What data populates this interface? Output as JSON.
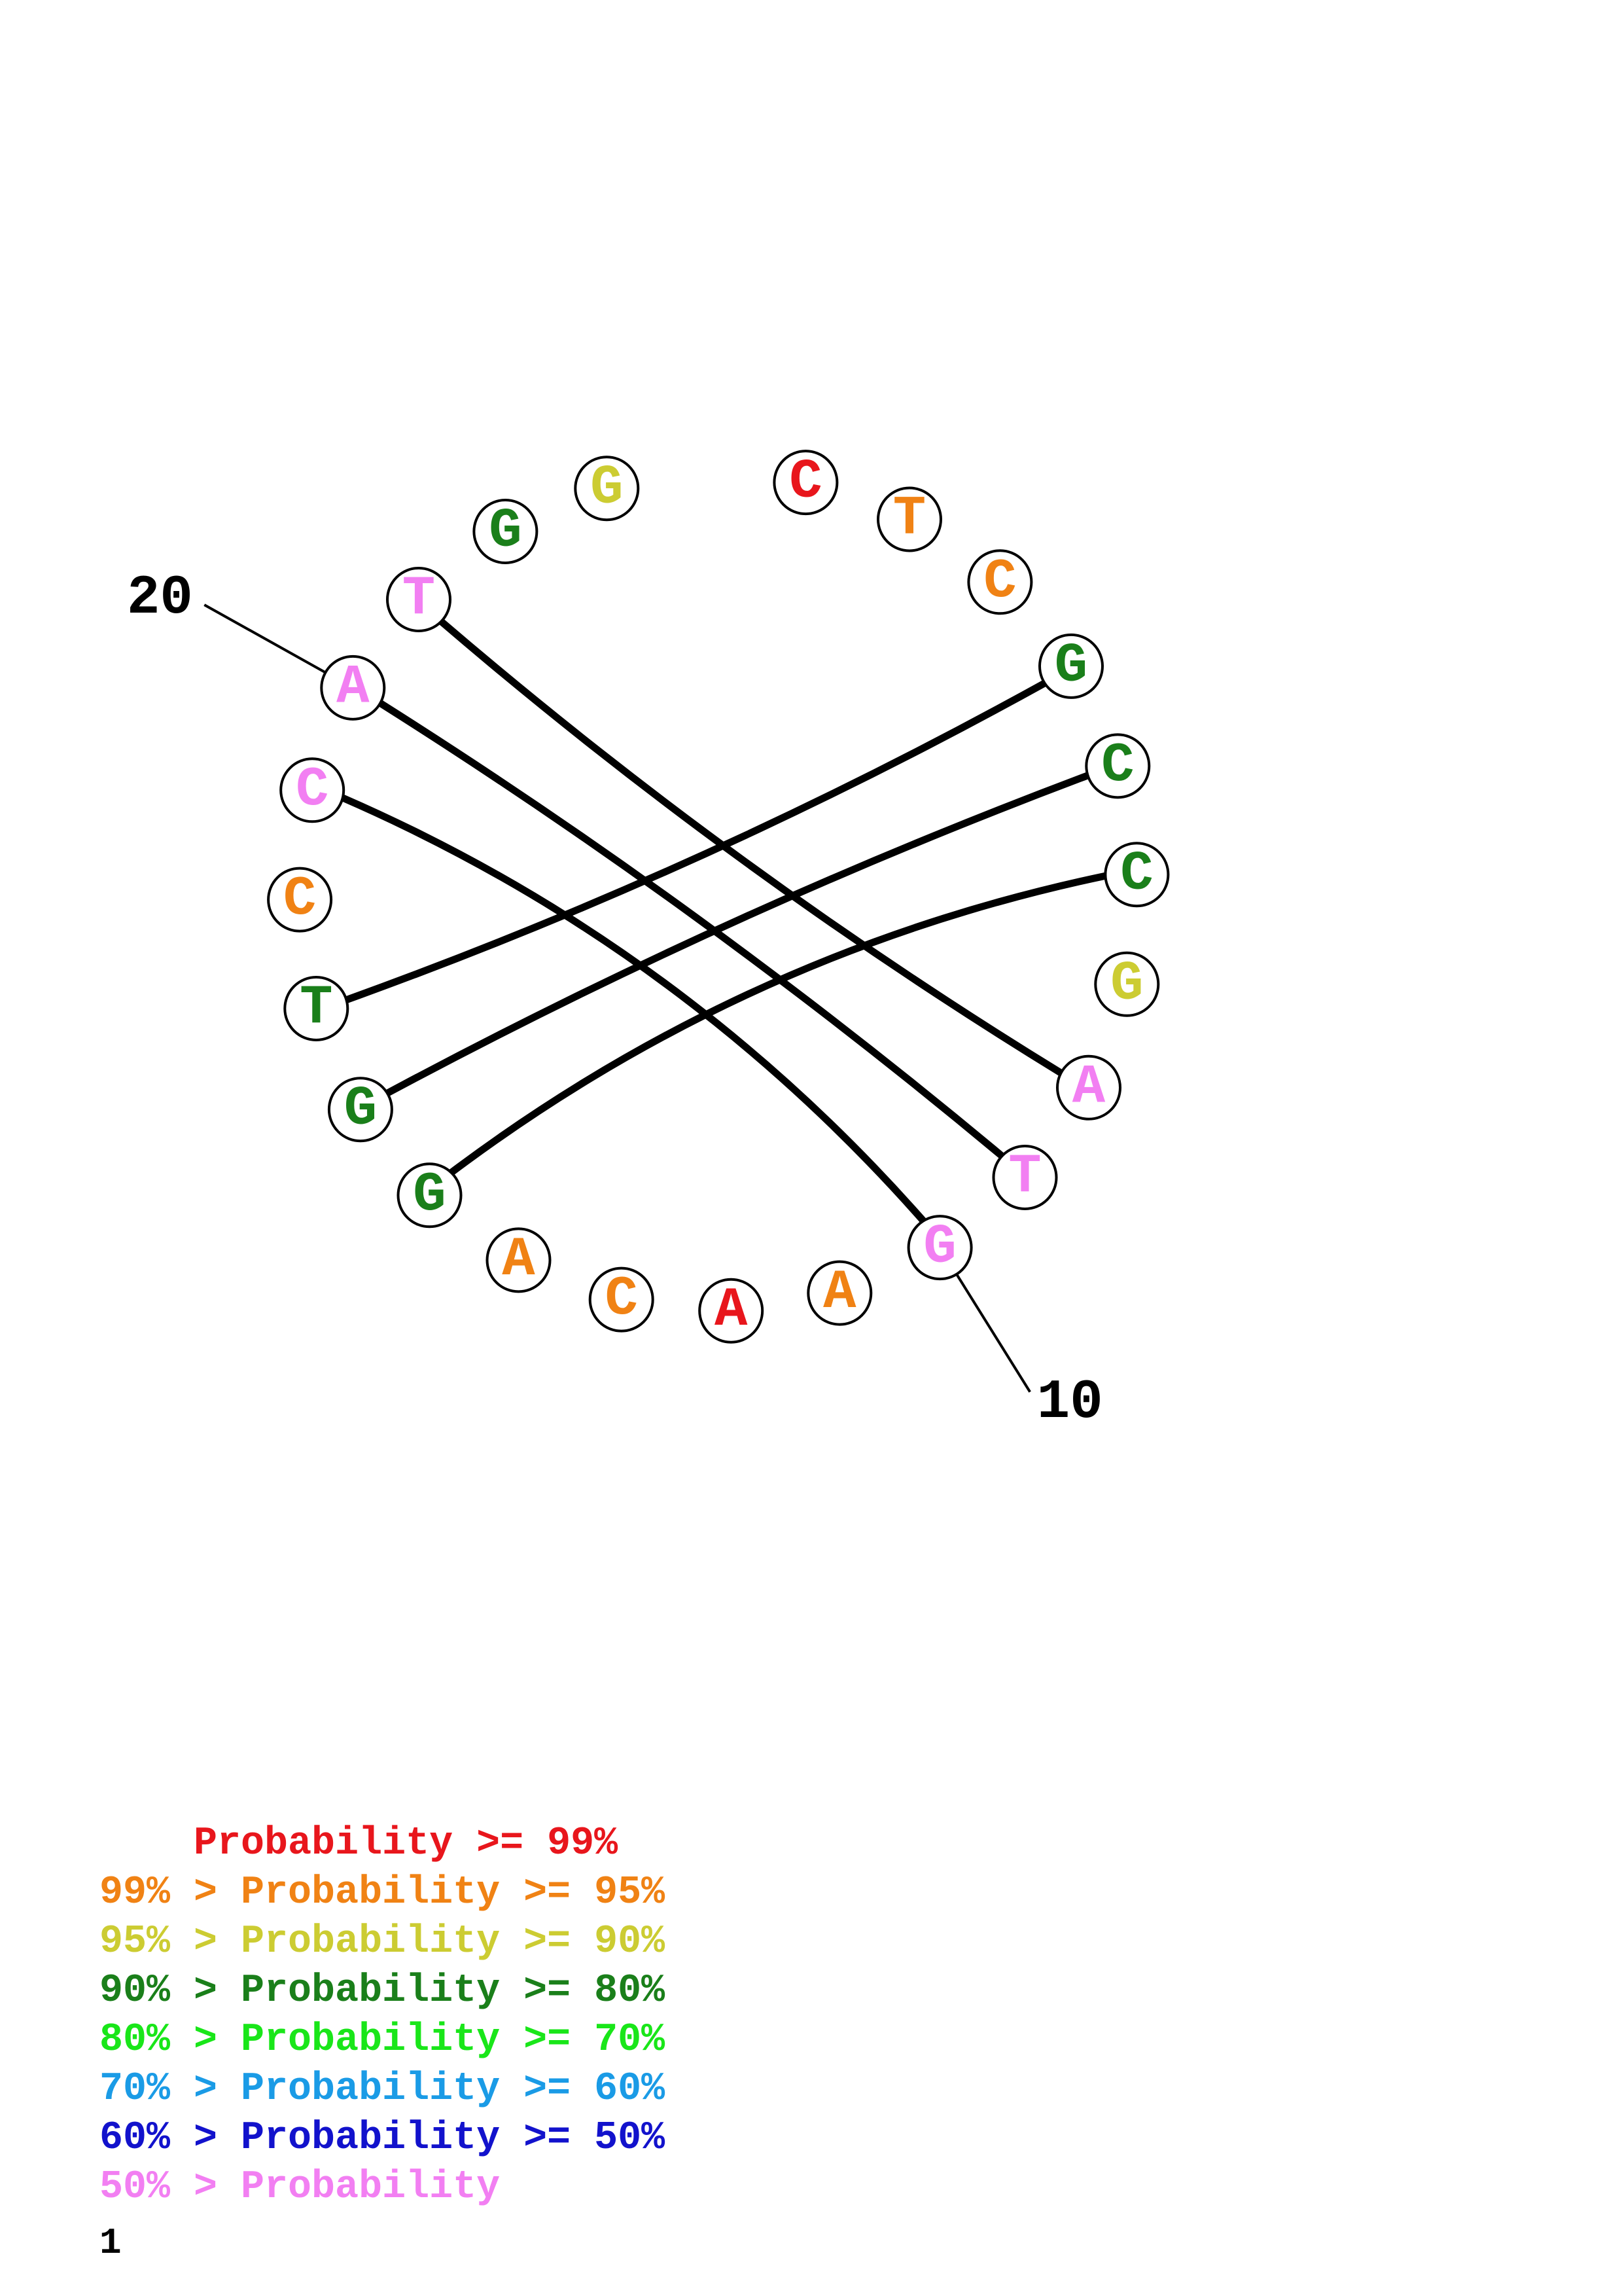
{
  "colors": {
    "p99": "#e8161c",
    "p95": "#f08214",
    "p90": "#cccc32",
    "p80": "#1a7f1a",
    "p70": "#19e619",
    "p60": "#1a9be6",
    "p50": "#1212cc",
    "below50": "#f27ff2"
  },
  "structure": {
    "sequence": [
      {
        "index": 1,
        "base": "C",
        "color": "p99"
      },
      {
        "index": 2,
        "base": "T",
        "color": "p95"
      },
      {
        "index": 3,
        "base": "C",
        "color": "p95"
      },
      {
        "index": 4,
        "base": "G",
        "color": "p80"
      },
      {
        "index": 5,
        "base": "C",
        "color": "p80"
      },
      {
        "index": 6,
        "base": "C",
        "color": "p80"
      },
      {
        "index": 7,
        "base": "G",
        "color": "p90"
      },
      {
        "index": 8,
        "base": "A",
        "color": "below50"
      },
      {
        "index": 9,
        "base": "T",
        "color": "below50"
      },
      {
        "index": 10,
        "base": "G",
        "color": "below50"
      },
      {
        "index": 11,
        "base": "A",
        "color": "p95"
      },
      {
        "index": 12,
        "base": "A",
        "color": "p99"
      },
      {
        "index": 13,
        "base": "C",
        "color": "p95"
      },
      {
        "index": 14,
        "base": "A",
        "color": "p95"
      },
      {
        "index": 15,
        "base": "G",
        "color": "p80"
      },
      {
        "index": 16,
        "base": "G",
        "color": "p80"
      },
      {
        "index": 17,
        "base": "T",
        "color": "p80"
      },
      {
        "index": 18,
        "base": "C",
        "color": "p95"
      },
      {
        "index": 19,
        "base": "C",
        "color": "below50"
      },
      {
        "index": 20,
        "base": "A",
        "color": "below50"
      },
      {
        "index": 21,
        "base": "T",
        "color": "below50"
      },
      {
        "index": 22,
        "base": "G",
        "color": "p80"
      },
      {
        "index": 23,
        "base": "G",
        "color": "p90"
      }
    ],
    "pairs": [
      [
        4,
        17
      ],
      [
        5,
        16
      ],
      [
        6,
        15
      ],
      [
        8,
        21
      ],
      [
        9,
        20
      ],
      [
        10,
        19
      ]
    ],
    "index_labels": [
      {
        "index": 10,
        "text": "10"
      },
      {
        "index": 20,
        "text": "20"
      }
    ]
  },
  "legend": [
    {
      "prefix": "    ",
      "text": "    Probability >= 99%",
      "color": "p99"
    },
    {
      "text": "99% > Probability >= 95%",
      "color": "p95"
    },
    {
      "text": "95% > Probability >= 90%",
      "color": "p90"
    },
    {
      "text": "90% > Probability >= 80%",
      "color": "p80"
    },
    {
      "text": "80% > Probability >= 70%",
      "color": "p70"
    },
    {
      "text": "70% > Probability >= 60%",
      "color": "p60"
    },
    {
      "text": "60% > Probability >= 50%",
      "color": "p50"
    },
    {
      "text": "50% > Probability",
      "color": "below50"
    }
  ],
  "page_number": "1"
}
